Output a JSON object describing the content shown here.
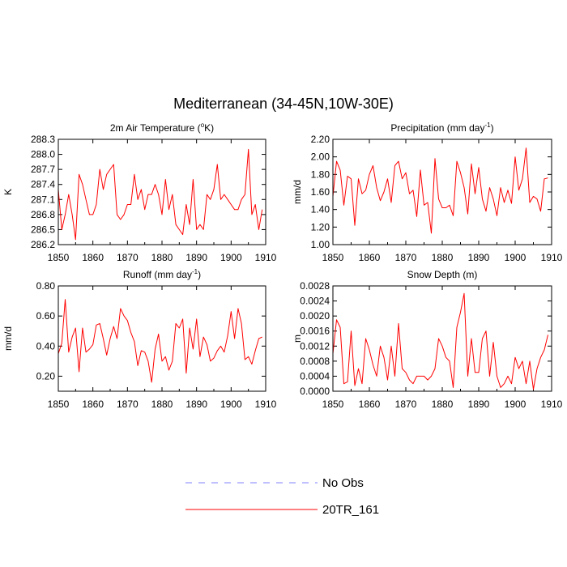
{
  "chart_data": {
    "title": "Mediterranean (34-45N,10W-30E)",
    "type": "line",
    "legend": {
      "placement": "bottom-center",
      "entries": [
        {
          "name": "No Obs",
          "color": "#8080ff",
          "style": "dashed"
        },
        {
          "name": "20TR_161",
          "color": "#ff0000",
          "style": "solid"
        }
      ]
    },
    "panels": [
      {
        "title_prefix": "2m Air Temperature (",
        "title_sup": "o",
        "title_suffix": "K)",
        "ylabel": "K",
        "xlim": [
          1850,
          1910
        ],
        "ylim": [
          286.2,
          288.3
        ],
        "xticks": [
          1850,
          1860,
          1870,
          1880,
          1890,
          1900,
          1910
        ],
        "yticks": [
          286.2,
          286.5,
          286.8,
          287.1,
          287.4,
          287.7,
          288.0,
          288.3
        ],
        "ytick_labels": [
          "286.2",
          "286.5",
          "286.8",
          "287.1",
          "287.4",
          "287.7",
          "288.0",
          "288.3"
        ],
        "series": [
          {
            "name": "20TR_161",
            "color": "#ff0000",
            "x_start": 1850,
            "values": [
              287.3,
              286.5,
              286.8,
              287.2,
              286.8,
              286.3,
              287.6,
              287.4,
              287.1,
              286.8,
              286.8,
              287.0,
              287.7,
              287.3,
              287.6,
              287.7,
              287.8,
              286.8,
              286.7,
              286.8,
              287.0,
              287.0,
              287.6,
              287.1,
              287.3,
              286.9,
              287.2,
              287.2,
              287.4,
              287.2,
              286.8,
              287.5,
              286.9,
              287.2,
              286.6,
              286.5,
              286.4,
              287.0,
              286.6,
              287.5,
              286.5,
              286.6,
              286.5,
              287.2,
              287.1,
              287.3,
              287.8,
              287.1,
              287.2,
              287.1,
              287.0,
              286.9,
              286.9,
              287.1,
              287.2,
              288.1,
              286.8,
              287.0,
              286.5,
              286.9
            ]
          }
        ]
      },
      {
        "title_prefix": "Precipitation (mm day",
        "title_sup": "-1",
        "title_suffix": ")",
        "ylabel": "mm/d",
        "xlim": [
          1850,
          1910
        ],
        "ylim": [
          1.0,
          2.2
        ],
        "xticks": [
          1850,
          1860,
          1870,
          1880,
          1890,
          1900,
          1910
        ],
        "yticks": [
          1.0,
          1.2,
          1.4,
          1.6,
          1.8,
          2.0,
          2.2
        ],
        "ytick_labels": [
          "1.00",
          "1.20",
          "1.40",
          "1.60",
          "1.80",
          "2.00",
          "2.20"
        ],
        "series": [
          {
            "name": "20TR_161",
            "color": "#ff0000",
            "x_start": 1850,
            "values": [
              1.55,
              1.95,
              1.85,
              1.45,
              1.78,
              1.75,
              1.22,
              1.75,
              1.58,
              1.62,
              1.8,
              1.9,
              1.65,
              1.5,
              1.6,
              1.75,
              1.48,
              1.9,
              1.95,
              1.75,
              1.82,
              1.58,
              1.62,
              1.32,
              1.85,
              1.45,
              1.48,
              1.13,
              1.98,
              1.52,
              1.42,
              1.42,
              1.45,
              1.33,
              1.95,
              1.82,
              1.65,
              1.35,
              1.92,
              1.58,
              1.88,
              1.52,
              1.38,
              1.65,
              1.52,
              1.33,
              1.65,
              1.48,
              1.62,
              1.47,
              2.0,
              1.62,
              1.75,
              2.1,
              1.48,
              1.55,
              1.52,
              1.38,
              1.75,
              1.76
            ]
          }
        ]
      },
      {
        "title_prefix": "Runoff (mm day",
        "title_sup": "-1",
        "title_suffix": ")",
        "ylabel": "mm/d",
        "xlim": [
          1850,
          1910
        ],
        "ylim": [
          0.1,
          0.8
        ],
        "xticks": [
          1850,
          1860,
          1870,
          1880,
          1890,
          1900,
          1910
        ],
        "yticks": [
          0.2,
          0.4,
          0.6,
          0.8
        ],
        "ytick_labels": [
          "0.20",
          "0.40",
          "0.60",
          "0.80"
        ],
        "series": [
          {
            "name": "20TR_161",
            "color": "#ff0000",
            "x_start": 1850,
            "values": [
              0.35,
              0.42,
              0.71,
              0.36,
              0.46,
              0.52,
              0.23,
              0.52,
              0.36,
              0.38,
              0.41,
              0.54,
              0.55,
              0.45,
              0.34,
              0.45,
              0.53,
              0.45,
              0.65,
              0.6,
              0.57,
              0.49,
              0.43,
              0.27,
              0.37,
              0.36,
              0.3,
              0.16,
              0.38,
              0.48,
              0.3,
              0.33,
              0.24,
              0.3,
              0.55,
              0.52,
              0.58,
              0.22,
              0.52,
              0.38,
              0.58,
              0.33,
              0.46,
              0.41,
              0.3,
              0.32,
              0.37,
              0.4,
              0.36,
              0.47,
              0.63,
              0.45,
              0.65,
              0.55,
              0.31,
              0.33,
              0.28,
              0.37,
              0.45,
              0.46
            ]
          }
        ]
      },
      {
        "title_prefix": "Snow Depth (m)",
        "title_sup": "",
        "title_suffix": "",
        "ylabel": "m",
        "xlim": [
          1850,
          1910
        ],
        "ylim": [
          0.0,
          0.0028
        ],
        "xticks": [
          1850,
          1860,
          1870,
          1880,
          1890,
          1900,
          1910
        ],
        "yticks": [
          0.0,
          0.0004,
          0.0008,
          0.0012,
          0.0016,
          0.002,
          0.0024,
          0.0028
        ],
        "ytick_labels": [
          "0.0000",
          "0.0004",
          "0.0008",
          "0.0012",
          "0.0016",
          "0.0020",
          "0.0024",
          "0.0028"
        ],
        "series": [
          {
            "name": "20TR_161",
            "color": "#ff0000",
            "x_start": 1850,
            "values": [
              0.001,
              0.0019,
              0.0017,
              0.0002,
              0.00025,
              0.0016,
              0.00015,
              0.0006,
              0.0002,
              0.0014,
              0.0011,
              0.0007,
              0.0004,
              0.0012,
              0.0009,
              0.0003,
              0.0012,
              0.0004,
              0.0018,
              0.0006,
              0.0005,
              0.0003,
              0.0002,
              0.0004,
              0.0004,
              0.0004,
              0.0003,
              0.0004,
              0.0006,
              0.0014,
              0.0012,
              0.0009,
              0.0008,
              0.0001,
              0.0017,
              0.0021,
              0.0026,
              0.0004,
              0.0014,
              0.0005,
              0.0005,
              0.0014,
              0.0016,
              0.0004,
              0.0013,
              0.0004,
              0.0001,
              0.0002,
              0.0004,
              0.0002,
              0.0009,
              0.0006,
              0.0008,
              0.0002,
              0.0008,
              5e-05,
              0.0006,
              0.0009,
              0.0011,
              0.0015
            ]
          }
        ]
      }
    ]
  }
}
